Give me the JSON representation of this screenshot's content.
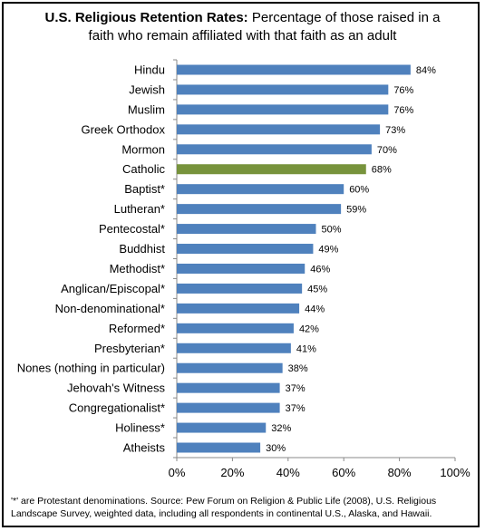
{
  "title": {
    "bold": "U.S. Religious Retention Rates:",
    "rest_line1": " Percentage of those raised in a",
    "line2": "faith who remain affiliated with that faith as an adult"
  },
  "footnote": {
    "line1": "'*' are Protestant denominations. Source: Pew Forum on Religion & Public Life (2008), U.S. Religious",
    "line2": "Landscape Survey, weighted data, including all respondents in continental U.S., Alaska, and Hawaii."
  },
  "colors": {
    "bar": "#4f81bd",
    "highlight": "#77933c",
    "axis": "#888888"
  },
  "chart_data": {
    "type": "bar",
    "orientation": "horizontal",
    "categories": [
      "Hindu",
      "Jewish",
      "Muslim",
      "Greek Orthodox",
      "Mormon",
      "Catholic",
      "Baptist*",
      "Lutheran*",
      "Pentecostal*",
      "Buddhist",
      "Methodist*",
      "Anglican/Episcopal*",
      "Non-denominational*",
      "Reformed*",
      "Presbyterian*",
      "Nones (nothing in particular)",
      "Jehovah's Witness",
      "Congregationalist*",
      "Holiness*",
      "Atheists"
    ],
    "values": [
      84,
      76,
      76,
      73,
      70,
      68,
      60,
      59,
      50,
      49,
      46,
      45,
      44,
      42,
      41,
      38,
      37,
      37,
      32,
      30
    ],
    "value_labels": [
      "84%",
      "76%",
      "76%",
      "73%",
      "70%",
      "68%",
      "60%",
      "59%",
      "50%",
      "49%",
      "46%",
      "45%",
      "44%",
      "42%",
      "41%",
      "38%",
      "37%",
      "37%",
      "32%",
      "30%"
    ],
    "highlight_category": "Catholic",
    "xlim": [
      0,
      100
    ],
    "x_ticks": [
      0,
      20,
      40,
      60,
      80,
      100
    ],
    "x_tick_labels": [
      "0%",
      "20%",
      "40%",
      "60%",
      "80%",
      "100%"
    ],
    "grid": false,
    "legend": "none"
  }
}
